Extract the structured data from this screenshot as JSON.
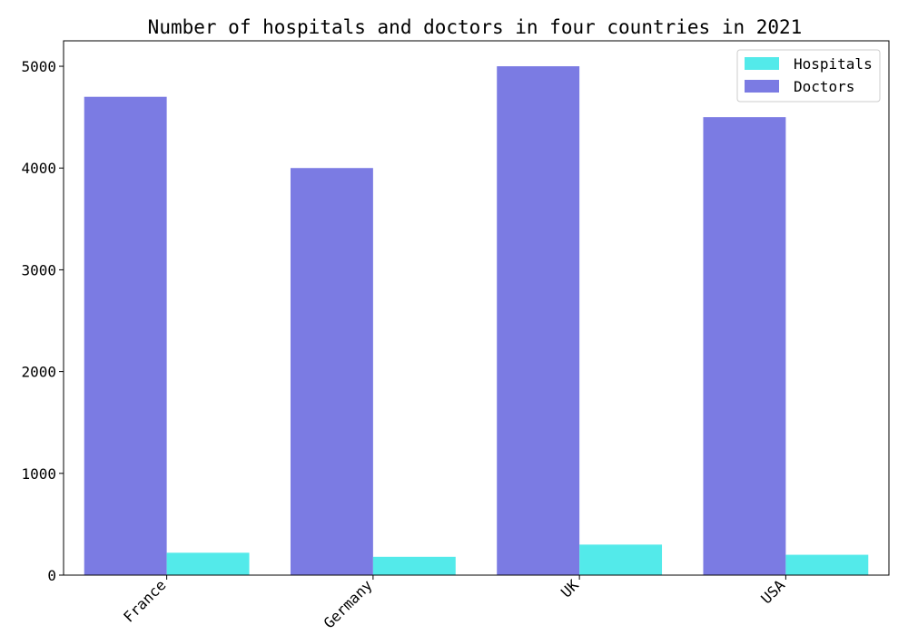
{
  "chart_data": {
    "type": "bar",
    "title": "Number of hospitals and doctors in four countries in 2021",
    "categories": [
      "France",
      "Germany",
      "UK",
      "USA"
    ],
    "series": [
      {
        "name": "Hospitals",
        "values": [
          220,
          180,
          300,
          200
        ],
        "color": "#53eaea"
      },
      {
        "name": "Doctors",
        "values": [
          4700,
          4000,
          5000,
          4500
        ],
        "color": "#7b7be3"
      }
    ],
    "xlabel": "",
    "ylabel": "",
    "ylim": [
      0,
      5250
    ],
    "yticks": [
      0,
      1000,
      2000,
      3000,
      4000,
      5000
    ],
    "grid": false,
    "legend_position": "top-right"
  }
}
